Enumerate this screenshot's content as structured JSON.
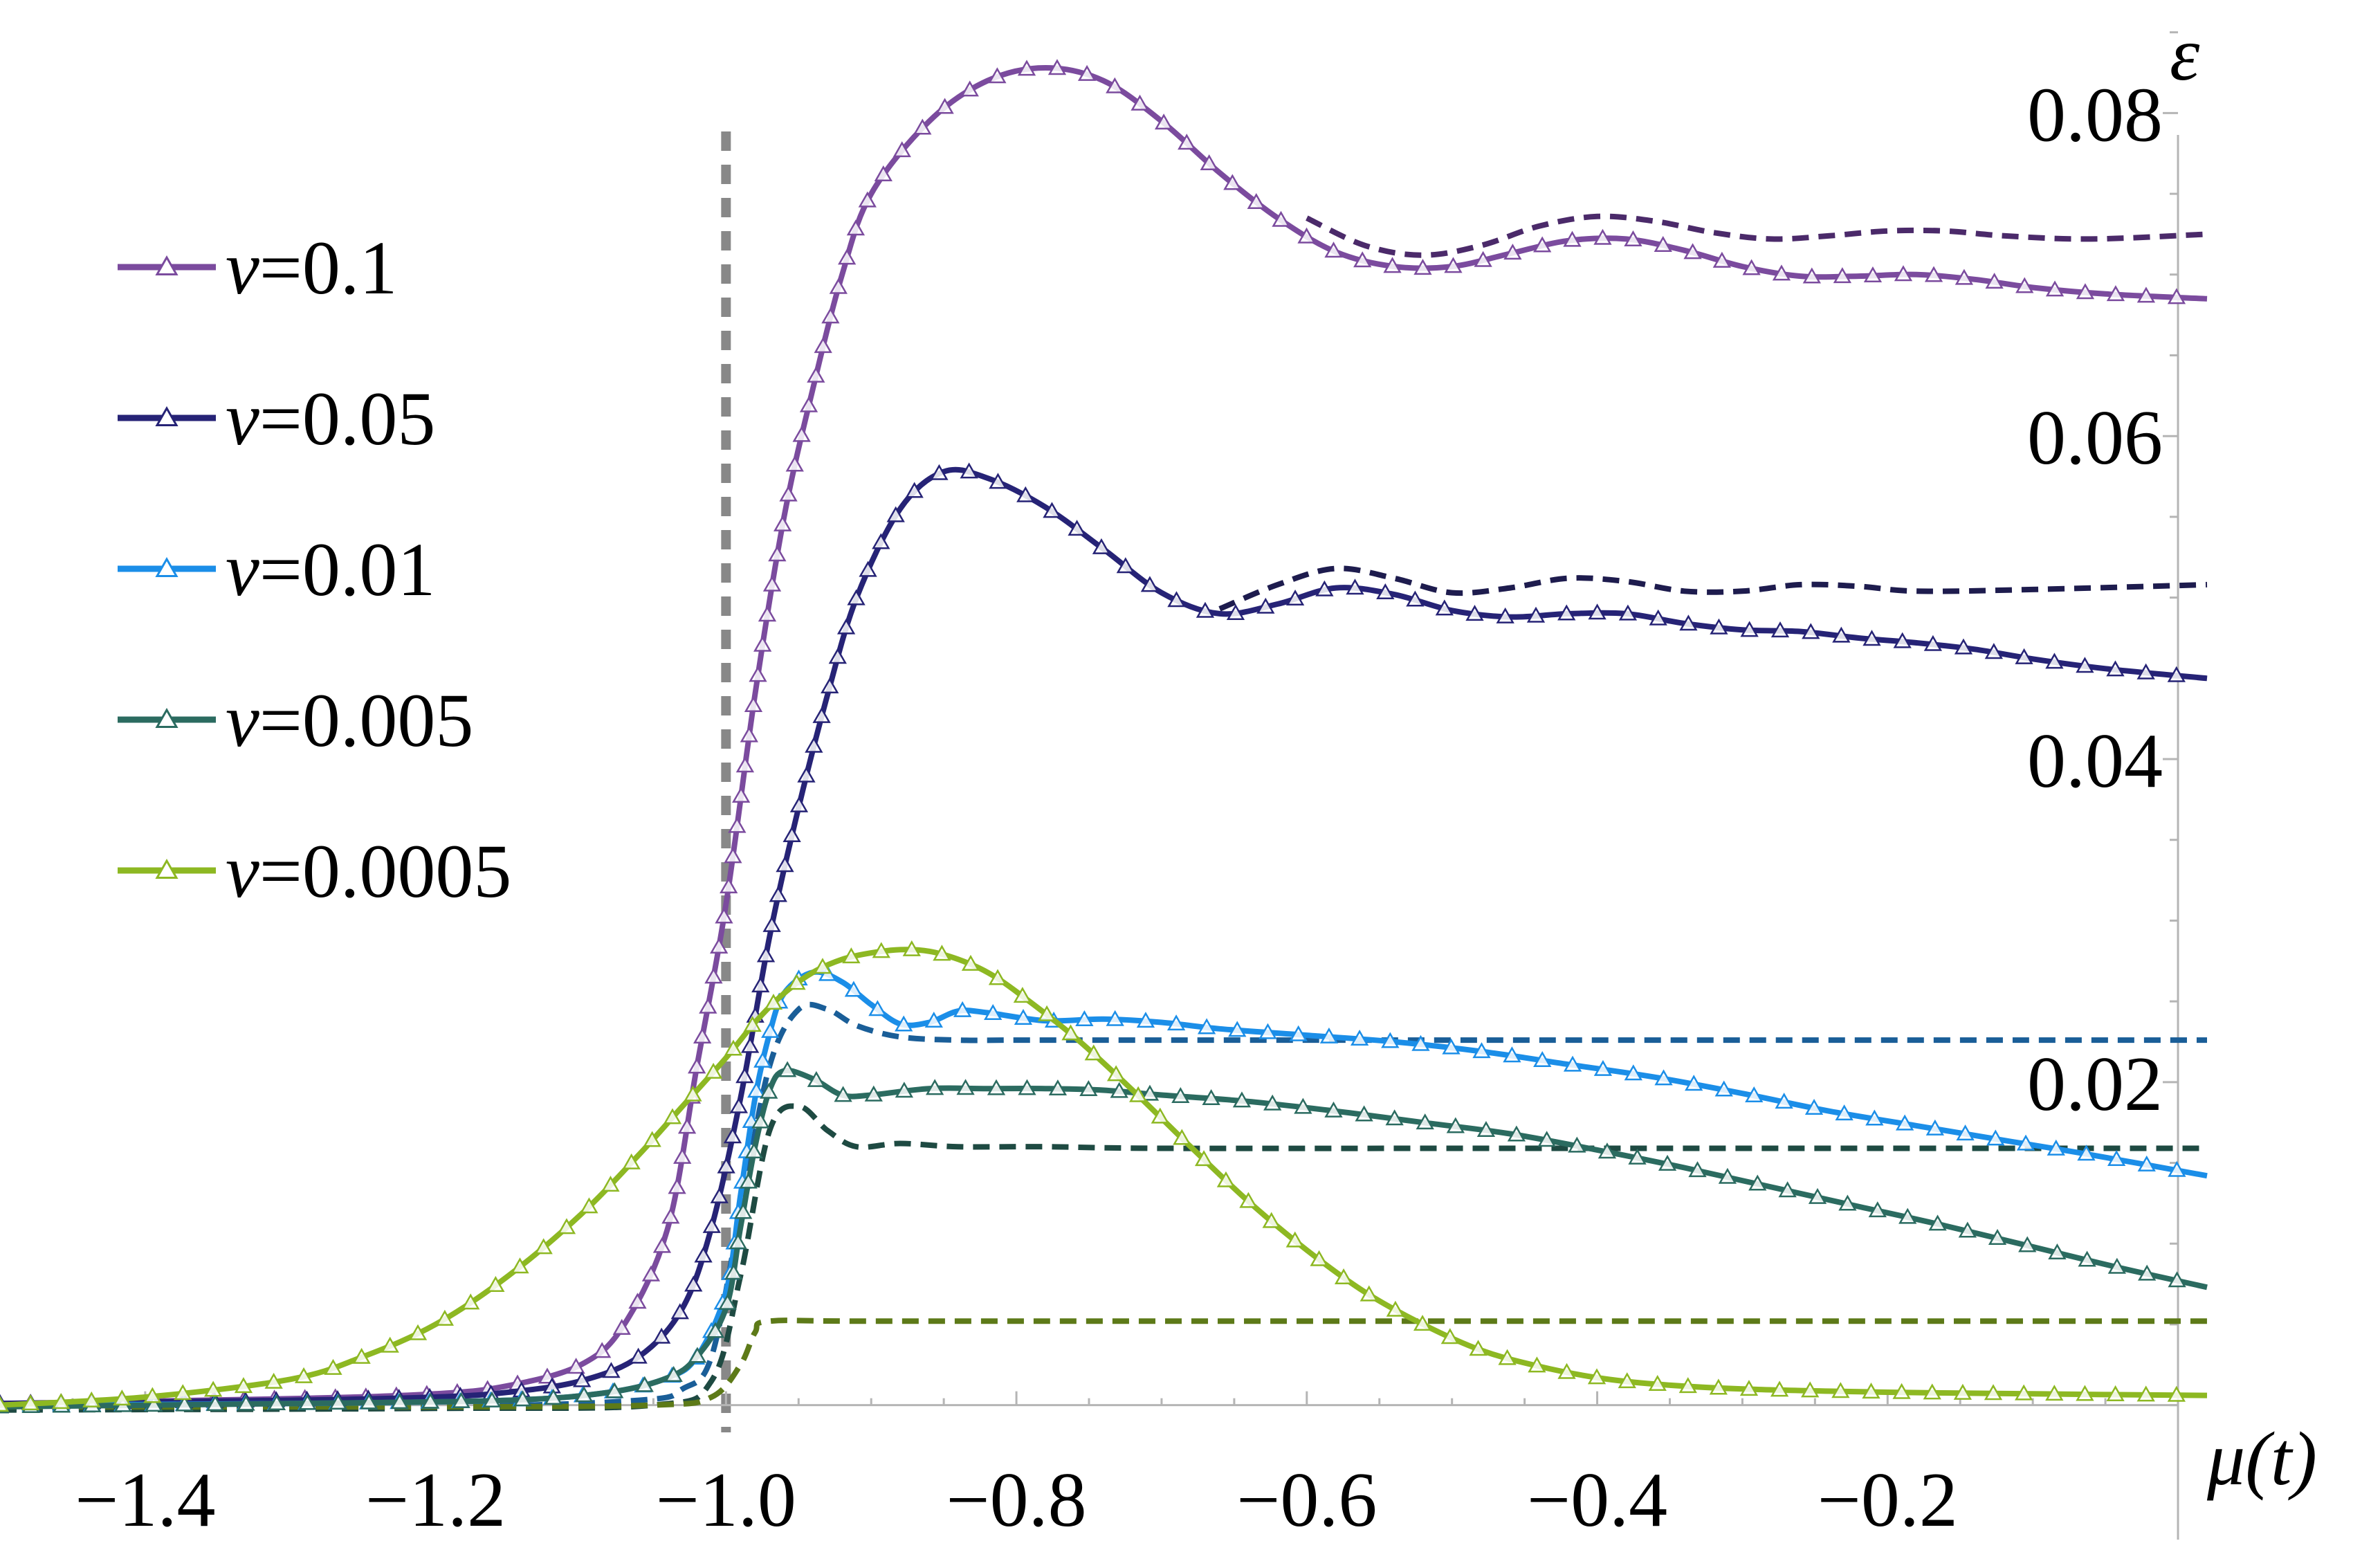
{
  "chart_data": {
    "type": "line",
    "title": "",
    "xlabel": "μ(t)",
    "ylabel": "ε",
    "xlim": [
      -1.5,
      0.02
    ],
    "ylim": [
      -0.0025,
      0.087
    ],
    "x_ticks": [
      -1.4,
      -1.2,
      -1.0,
      -0.8,
      -0.6,
      -0.4,
      -0.2
    ],
    "x_tick_labels": [
      "−1.4",
      "−1.2",
      "−1.0",
      "−0.8",
      "−0.6",
      "−0.4",
      "−0.2"
    ],
    "y_ticks": [
      0.02,
      0.04,
      0.06,
      0.08
    ],
    "y_tick_labels": [
      "0.02",
      "0.04",
      "0.06",
      "0.08"
    ],
    "critical_line": {
      "x": -1.0,
      "style": "dashed",
      "color": "#888888"
    },
    "legend_position": "top-left",
    "series": [
      {
        "name": "v=0.1",
        "v_label": "v",
        "v_value": "=0.1",
        "color": "#7b4b9e",
        "points": [
          [
            -1.5,
            0.0001
          ],
          [
            -1.3,
            0.0004
          ],
          [
            -1.2,
            0.0007
          ],
          [
            -1.15,
            0.0012
          ],
          [
            -1.1,
            0.0025
          ],
          [
            -1.07,
            0.005
          ],
          [
            -1.04,
            0.011
          ],
          [
            -1.02,
            0.021
          ],
          [
            -1.0,
            0.031
          ],
          [
            -0.98,
            0.044
          ],
          [
            -0.96,
            0.055
          ],
          [
            -0.94,
            0.063
          ],
          [
            -0.92,
            0.07
          ],
          [
            -0.9,
            0.075
          ],
          [
            -0.86,
            0.0795
          ],
          [
            -0.82,
            0.082
          ],
          [
            -0.78,
            0.0828
          ],
          [
            -0.74,
            0.082
          ],
          [
            -0.7,
            0.0795
          ],
          [
            -0.66,
            0.0763
          ],
          [
            -0.62,
            0.0735
          ],
          [
            -0.58,
            0.0714
          ],
          [
            -0.54,
            0.0705
          ],
          [
            -0.5,
            0.0705
          ],
          [
            -0.46,
            0.0713
          ],
          [
            -0.42,
            0.0721
          ],
          [
            -0.38,
            0.0722
          ],
          [
            -0.34,
            0.0715
          ],
          [
            -0.3,
            0.0705
          ],
          [
            -0.26,
            0.0699
          ],
          [
            -0.22,
            0.0699
          ],
          [
            -0.18,
            0.07
          ],
          [
            -0.14,
            0.0697
          ],
          [
            -0.1,
            0.0692
          ],
          [
            -0.05,
            0.0688
          ],
          [
            0.02,
            0.0685
          ]
        ],
        "ref_points": [
          [
            -0.6,
            0.0735
          ],
          [
            -0.56,
            0.0718
          ],
          [
            -0.52,
            0.0712
          ],
          [
            -0.48,
            0.0718
          ],
          [
            -0.44,
            0.073
          ],
          [
            -0.4,
            0.0736
          ],
          [
            -0.36,
            0.0733
          ],
          [
            -0.32,
            0.0726
          ],
          [
            -0.28,
            0.0722
          ],
          [
            -0.24,
            0.0724
          ],
          [
            -0.2,
            0.0727
          ],
          [
            -0.16,
            0.0727
          ],
          [
            -0.12,
            0.0724
          ],
          [
            -0.06,
            0.0722
          ],
          [
            0.02,
            0.0725
          ]
        ]
      },
      {
        "name": "v=0.05",
        "v_label": "v",
        "v_value": "=0.05",
        "color": "#262376",
        "points": [
          [
            -1.5,
            0.0001
          ],
          [
            -1.3,
            0.0003
          ],
          [
            -1.2,
            0.0005
          ],
          [
            -1.15,
            0.0008
          ],
          [
            -1.1,
            0.0015
          ],
          [
            -1.06,
            0.003
          ],
          [
            -1.03,
            0.006
          ],
          [
            -1.01,
            0.011
          ],
          [
            -0.99,
            0.019
          ],
          [
            -0.97,
            0.029
          ],
          [
            -0.95,
            0.037
          ],
          [
            -0.93,
            0.044
          ],
          [
            -0.91,
            0.05
          ],
          [
            -0.88,
            0.0555
          ],
          [
            -0.85,
            0.0578
          ],
          [
            -0.82,
            0.0574
          ],
          [
            -0.78,
            0.0556
          ],
          [
            -0.74,
            0.053
          ],
          [
            -0.7,
            0.0503
          ],
          [
            -0.66,
            0.049
          ],
          [
            -0.62,
            0.0496
          ],
          [
            -0.58,
            0.0506
          ],
          [
            -0.54,
            0.0502
          ],
          [
            -0.5,
            0.0492
          ],
          [
            -0.46,
            0.0488
          ],
          [
            -0.42,
            0.049
          ],
          [
            -0.38,
            0.049
          ],
          [
            -0.34,
            0.0484
          ],
          [
            -0.3,
            0.048
          ],
          [
            -0.26,
            0.0479
          ],
          [
            -0.22,
            0.0475
          ],
          [
            -0.18,
            0.0472
          ],
          [
            -0.14,
            0.0468
          ],
          [
            -0.1,
            0.0462
          ],
          [
            -0.05,
            0.0456
          ],
          [
            0.02,
            0.045
          ]
        ],
        "ref_points": [
          [
            -0.66,
            0.0493
          ],
          [
            -0.62,
            0.0508
          ],
          [
            -0.58,
            0.0518
          ],
          [
            -0.54,
            0.0512
          ],
          [
            -0.5,
            0.0503
          ],
          [
            -0.46,
            0.0506
          ],
          [
            -0.42,
            0.0512
          ],
          [
            -0.38,
            0.051
          ],
          [
            -0.34,
            0.0504
          ],
          [
            -0.3,
            0.0504
          ],
          [
            -0.26,
            0.0508
          ],
          [
            -0.22,
            0.0507
          ],
          [
            -0.18,
            0.0504
          ],
          [
            -0.1,
            0.0505
          ],
          [
            0.02,
            0.0508
          ]
        ]
      },
      {
        "name": "v=0.01",
        "v_label": "v",
        "v_value": "=0.01",
        "color": "#1b8ee8",
        "points": [
          [
            -1.5,
            0.0
          ],
          [
            -1.3,
            0.0001
          ],
          [
            -1.15,
            0.0003
          ],
          [
            -1.08,
            0.0008
          ],
          [
            -1.04,
            0.0017
          ],
          [
            -1.02,
            0.003
          ],
          [
            -1.0,
            0.007
          ],
          [
            -0.99,
            0.013
          ],
          [
            -0.98,
            0.019
          ],
          [
            -0.97,
            0.023
          ],
          [
            -0.96,
            0.0255
          ],
          [
            -0.94,
            0.0268
          ],
          [
            -0.92,
            0.0262
          ],
          [
            -0.9,
            0.0248
          ],
          [
            -0.88,
            0.0236
          ],
          [
            -0.86,
            0.0237
          ],
          [
            -0.84,
            0.0244
          ],
          [
            -0.82,
            0.0243
          ],
          [
            -0.78,
            0.0238
          ],
          [
            -0.74,
            0.0239
          ],
          [
            -0.7,
            0.0237
          ],
          [
            -0.66,
            0.0233
          ],
          [
            -0.6,
            0.0229
          ],
          [
            -0.54,
            0.0225
          ],
          [
            -0.48,
            0.0219
          ],
          [
            -0.42,
            0.0211
          ],
          [
            -0.36,
            0.0203
          ],
          [
            -0.3,
            0.0193
          ],
          [
            -0.24,
            0.0182
          ],
          [
            -0.18,
            0.0173
          ],
          [
            -0.12,
            0.0164
          ],
          [
            -0.06,
            0.0155
          ],
          [
            0.02,
            0.0142
          ]
        ],
        "ref_points": [
          [
            -1.5,
            -0.0002
          ],
          [
            -1.2,
            -0.0001
          ],
          [
            -1.06,
            0.0003
          ],
          [
            -1.03,
            0.001
          ],
          [
            -1.01,
            0.003
          ],
          [
            -0.99,
            0.012
          ],
          [
            -0.97,
            0.021
          ],
          [
            -0.95,
            0.0245
          ],
          [
            -0.93,
            0.0245
          ],
          [
            -0.91,
            0.0235
          ],
          [
            -0.88,
            0.0228
          ],
          [
            -0.84,
            0.0226
          ],
          [
            -0.8,
            0.0226
          ],
          [
            -0.7,
            0.0226
          ],
          [
            -0.5,
            0.0226
          ],
          [
            -0.3,
            0.0226
          ],
          [
            0.02,
            0.0226
          ]
        ]
      },
      {
        "name": "v=0.005",
        "v_label": "v",
        "v_value": "=0.005",
        "color": "#2b6b60",
        "points": [
          [
            -1.5,
            -0.0001
          ],
          [
            -1.3,
            0.0001
          ],
          [
            -1.15,
            0.0003
          ],
          [
            -1.08,
            0.0008
          ],
          [
            -1.04,
            0.0017
          ],
          [
            -1.02,
            0.003
          ],
          [
            -1.0,
            0.006
          ],
          [
            -0.99,
            0.011
          ],
          [
            -0.98,
            0.016
          ],
          [
            -0.97,
            0.0195
          ],
          [
            -0.96,
            0.0207
          ],
          [
            -0.94,
            0.0202
          ],
          [
            -0.92,
            0.0192
          ],
          [
            -0.9,
            0.0192
          ],
          [
            -0.86,
            0.0196
          ],
          [
            -0.82,
            0.0196
          ],
          [
            -0.78,
            0.0196
          ],
          [
            -0.74,
            0.0195
          ],
          [
            -0.7,
            0.0192
          ],
          [
            -0.64,
            0.0188
          ],
          [
            -0.58,
            0.0182
          ],
          [
            -0.52,
            0.0175
          ],
          [
            -0.46,
            0.0168
          ],
          [
            -0.4,
            0.0158
          ],
          [
            -0.34,
            0.0147
          ],
          [
            -0.28,
            0.0135
          ],
          [
            -0.22,
            0.0123
          ],
          [
            -0.16,
            0.0111
          ],
          [
            -0.1,
            0.0098
          ],
          [
            -0.04,
            0.0085
          ],
          [
            0.02,
            0.0073
          ]
        ],
        "ref_points": [
          [
            -1.5,
            -0.0003
          ],
          [
            -1.2,
            -0.0002
          ],
          [
            -1.05,
            0.0
          ],
          [
            -1.01,
            0.0015
          ],
          [
            -0.99,
            0.008
          ],
          [
            -0.97,
            0.017
          ],
          [
            -0.95,
            0.0185
          ],
          [
            -0.93,
            0.017
          ],
          [
            -0.91,
            0.016
          ],
          [
            -0.88,
            0.0162
          ],
          [
            -0.84,
            0.016
          ],
          [
            -0.78,
            0.016
          ],
          [
            -0.7,
            0.0159
          ],
          [
            -0.5,
            0.0159
          ],
          [
            -0.3,
            0.0159
          ],
          [
            0.02,
            0.0159
          ]
        ]
      },
      {
        "name": "v=0.0005",
        "v_label": "v",
        "v_value": "=0.0005",
        "color": "#8db822",
        "points": [
          [
            -1.5,
            0.0
          ],
          [
            -1.4,
            0.0005
          ],
          [
            -1.3,
            0.0016
          ],
          [
            -1.25,
            0.003
          ],
          [
            -1.2,
            0.005
          ],
          [
            -1.15,
            0.008
          ],
          [
            -1.1,
            0.0118
          ],
          [
            -1.06,
            0.0155
          ],
          [
            -1.03,
            0.0185
          ],
          [
            -1.0,
            0.0215
          ],
          [
            -0.98,
            0.0237
          ],
          [
            -0.96,
            0.0255
          ],
          [
            -0.94,
            0.0268
          ],
          [
            -0.92,
            0.0276
          ],
          [
            -0.9,
            0.028
          ],
          [
            -0.88,
            0.0282
          ],
          [
            -0.86,
            0.0281
          ],
          [
            -0.84,
            0.0276
          ],
          [
            -0.82,
            0.0268
          ],
          [
            -0.8,
            0.0256
          ],
          [
            -0.76,
            0.0228
          ],
          [
            -0.72,
            0.0195
          ],
          [
            -0.68,
            0.016
          ],
          [
            -0.64,
            0.0126
          ],
          [
            -0.6,
            0.0096
          ],
          [
            -0.56,
            0.007
          ],
          [
            -0.52,
            0.005
          ],
          [
            -0.48,
            0.0034
          ],
          [
            -0.44,
            0.0024
          ],
          [
            -0.4,
            0.0017
          ],
          [
            -0.36,
            0.0013
          ],
          [
            -0.3,
            0.001
          ],
          [
            -0.2,
            0.0008
          ],
          [
            -0.1,
            0.0007
          ],
          [
            0.02,
            0.0006
          ]
        ],
        "ref_points": [
          [
            -1.5,
            -0.0001
          ],
          [
            -1.2,
            -0.0001
          ],
          [
            -1.05,
            0.0
          ],
          [
            -1.01,
            0.0005
          ],
          [
            -0.99,
            0.0025
          ],
          [
            -0.98,
            0.0045
          ],
          [
            -0.97,
            0.0052
          ],
          [
            -0.9,
            0.0052
          ],
          [
            -0.6,
            0.0052
          ],
          [
            -0.3,
            0.0052
          ],
          [
            0.02,
            0.0052
          ]
        ]
      }
    ],
    "ref_colors": [
      "#4b2a6a",
      "#1e1c4e",
      "#1a5e98",
      "#1e4a42",
      "#5d7a18"
    ]
  }
}
